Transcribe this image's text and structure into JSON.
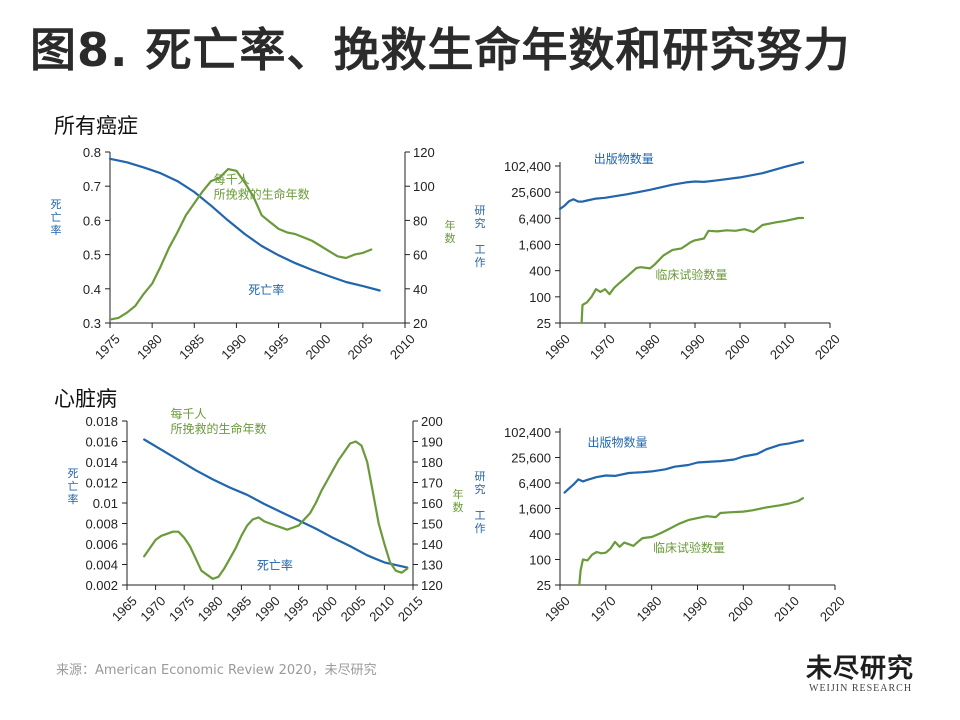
{
  "title": "图8. 死亡率、挽救生命年数和研究努力",
  "sections": {
    "cancer": "所有癌症",
    "heart": "心脏病"
  },
  "source": "来源：American Economic Review 2020，未尽研究",
  "logo": {
    "cn": "未尽研究",
    "en": "WEIJIN RESEARCH"
  },
  "colors": {
    "blue": "#2166ac",
    "green": "#6a9a3a",
    "axis": "#222222"
  },
  "chart_data": [
    {
      "id": "cancer-mortality",
      "type": "line",
      "title": "",
      "xlabel": "",
      "xlim": [
        1975,
        2010
      ],
      "xticks": [
        1975,
        1980,
        1985,
        1990,
        1995,
        2000,
        2005,
        2010
      ],
      "y_left": {
        "label": "死亡率",
        "lim": [
          0.3,
          0.8
        ],
        "ticks": [
          0.3,
          0.4,
          0.5,
          0.6,
          0.7,
          0.8
        ],
        "tick_labels": [
          "0.3",
          "0.4",
          "0.5",
          "0.6",
          "0.7",
          "0.8"
        ]
      },
      "y_right": {
        "label": "年数",
        "lim": [
          20,
          120
        ],
        "ticks": [
          20,
          40,
          60,
          80,
          100,
          120
        ],
        "tick_labels": [
          "20",
          "40",
          "60",
          "80",
          "100",
          "120"
        ]
      },
      "series": [
        {
          "name": "死亡率",
          "axis": "left",
          "color": "#2166ac",
          "x": [
            1975,
            1977,
            1979,
            1981,
            1983,
            1985,
            1987,
            1989,
            1991,
            1993,
            1995,
            1997,
            1999,
            2001,
            2003,
            2005,
            2007
          ],
          "y": [
            0.78,
            0.77,
            0.755,
            0.738,
            0.715,
            0.683,
            0.643,
            0.6,
            0.56,
            0.525,
            0.498,
            0.475,
            0.455,
            0.437,
            0.42,
            0.408,
            0.395
          ]
        },
        {
          "name": "每千人\n所挽救的生命年数",
          "axis": "right",
          "color": "#6a9a3a",
          "x": [
            1975,
            1976,
            1977,
            1978,
            1979,
            1980,
            1981,
            1982,
            1983,
            1984,
            1985,
            1986,
            1987,
            1988,
            1989,
            1990,
            1991,
            1992,
            1993,
            1994,
            1995,
            1996,
            1997,
            1998,
            1999,
            2000,
            2001,
            2002,
            2003,
            2004,
            2005,
            2006
          ],
          "y": [
            22,
            23,
            26,
            30,
            37,
            43,
            53,
            64,
            73,
            83,
            90,
            97,
            103,
            105,
            110,
            109,
            102,
            94,
            83,
            79,
            75,
            73,
            72,
            70,
            68,
            65,
            62,
            59,
            58,
            60,
            61,
            63
          ]
        }
      ],
      "annotations": [
        {
          "text": "每千人\n所挽救的生命年数",
          "x": 1987.3,
          "y": 0.708,
          "color": "#6a9a3a"
        },
        {
          "text": "死亡率",
          "x": 1991.4,
          "y": 0.385,
          "color": "#2166ac"
        }
      ]
    },
    {
      "id": "cancer-research",
      "type": "line",
      "title": "",
      "xlabel": "",
      "xlim": [
        1960,
        2020
      ],
      "xticks": [
        1960,
        1970,
        1980,
        1990,
        2000,
        2010,
        2020
      ],
      "ylabel": "研究 工作",
      "yscale": "log",
      "ylim": [
        25,
        102400
      ],
      "yticks": [
        25,
        100,
        400,
        1600,
        6400,
        25600,
        102400
      ],
      "ytick_labels": [
        "25",
        "100",
        "400",
        "1,600",
        "6,400",
        "25,600",
        "102,400"
      ],
      "series": [
        {
          "name": "出版物数量",
          "color": "#2166ac",
          "x": [
            1960,
            1961,
            1962,
            1963,
            1964,
            1965,
            1966,
            1968,
            1970,
            1975,
            1980,
            1985,
            1988,
            1990,
            1992,
            1995,
            2000,
            2005,
            2010,
            2014
          ],
          "y": [
            10500,
            12500,
            15800,
            17500,
            15600,
            15500,
            16500,
            18200,
            19000,
            23000,
            29000,
            38000,
            43000,
            45000,
            44000,
            48000,
            56000,
            70000,
            98000,
            125000
          ]
        },
        {
          "name": "临床试验数量",
          "color": "#6a9a3a",
          "x": [
            1964.8,
            1965,
            1966,
            1967,
            1968,
            1969,
            1970,
            1971,
            1972,
            1973,
            1975,
            1977,
            1978,
            1980,
            1981,
            1983,
            1985,
            1987,
            1989,
            1990,
            1992,
            1993,
            1995,
            1997,
            1999,
            2001,
            2003,
            2005,
            2008,
            2010,
            2013,
            2014
          ],
          "y": [
            25,
            65,
            75,
            100,
            150,
            130,
            150,
            115,
            160,
            200,
            300,
            460,
            480,
            450,
            550,
            900,
            1200,
            1300,
            1800,
            2000,
            2200,
            3300,
            3200,
            3400,
            3300,
            3600,
            3100,
            4500,
            5200,
            5600,
            6500,
            6500
          ]
        }
      ],
      "annotations": [
        {
          "text": "出版物数量",
          "x": 1967.5,
          "y": 120000,
          "color": "#2166ac"
        },
        {
          "text": "临床试验数量",
          "x": 1981.2,
          "y": 255,
          "color": "#6a9a3a"
        }
      ]
    },
    {
      "id": "heart-mortality",
      "type": "line",
      "title": "",
      "xlabel": "",
      "xlim": [
        1965,
        2015
      ],
      "xticks": [
        1965,
        1970,
        1975,
        1980,
        1985,
        1990,
        1995,
        2000,
        2005,
        2010,
        2015
      ],
      "y_left": {
        "label": "死亡率",
        "lim": [
          0.002,
          0.018
        ],
        "ticks": [
          0.002,
          0.004,
          0.006,
          0.008,
          0.01,
          0.012,
          0.014,
          0.016,
          0.018
        ],
        "tick_labels": [
          "0.002",
          "0.004",
          "0.006",
          "0.008",
          "0.01",
          "0.012",
          "0.014",
          "0.016",
          "0.018"
        ]
      },
      "y_right": {
        "label": "年数",
        "lim": [
          120,
          200
        ],
        "ticks": [
          120,
          130,
          140,
          150,
          160,
          170,
          180,
          190,
          200
        ],
        "tick_labels": [
          "120",
          "130",
          "140",
          "150",
          "160",
          "170",
          "180",
          "190",
          "200"
        ]
      },
      "series": [
        {
          "name": "死亡率",
          "axis": "left",
          "color": "#2166ac",
          "x": [
            1968,
            1971,
            1974,
            1977,
            1980,
            1983,
            1986,
            1989,
            1992,
            1995,
            1998,
            2001,
            2004,
            2007,
            2010,
            2014
          ],
          "y": [
            0.0162,
            0.0152,
            0.0142,
            0.0132,
            0.0123,
            0.0115,
            0.0108,
            0.0099,
            0.0091,
            0.0083,
            0.0075,
            0.0066,
            0.0058,
            0.0049,
            0.0042,
            0.0037
          ]
        },
        {
          "name": "每千人\n所挽救的生命年数",
          "axis": "right",
          "color": "#6a9a3a",
          "x": [
            1968,
            1969,
            1970,
            1971,
            1972,
            1973,
            1974,
            1975,
            1976,
            1977,
            1978,
            1979,
            1980,
            1981,
            1982,
            1983,
            1984,
            1985,
            1986,
            1987,
            1988,
            1989,
            1990,
            1991,
            1992,
            1993,
            1994,
            1995,
            1996,
            1997,
            1998,
            1999,
            2000,
            2001,
            2002,
            2003,
            2004,
            2005,
            2006,
            2007,
            2008,
            2009,
            2010,
            2011,
            2012,
            2013,
            2014
          ],
          "y": [
            134,
            138,
            142,
            144,
            145,
            146,
            146,
            143,
            139,
            133,
            127,
            125,
            123,
            124,
            128,
            133,
            138,
            144,
            149,
            152,
            153,
            151,
            150,
            149,
            148,
            147,
            148,
            149,
            152,
            155,
            160,
            166,
            171,
            176,
            181,
            185,
            189,
            190,
            188,
            180,
            165,
            150,
            140,
            131,
            127,
            126,
            128
          ]
        }
      ],
      "annotations": [
        {
          "text": "每千人\n所挽救的生命年数",
          "x": 1972.6,
          "y": 0.0183,
          "color": "#6a9a3a"
        },
        {
          "text": "死亡率",
          "x": 1987.7,
          "y": 0.0035,
          "color": "#2166ac"
        }
      ]
    },
    {
      "id": "heart-research",
      "type": "line",
      "title": "",
      "xlabel": "",
      "xlim": [
        1960,
        2020
      ],
      "xticks": [
        1960,
        1970,
        1980,
        1990,
        2000,
        2010,
        2020
      ],
      "ylabel": "研究 工作",
      "yscale": "log",
      "ylim": [
        25,
        102400
      ],
      "yticks": [
        25,
        100,
        400,
        1600,
        6400,
        25600,
        102400
      ],
      "ytick_labels": [
        "25",
        "100",
        "400",
        "1,600",
        "6,400",
        "25,600",
        "102,400"
      ],
      "series": [
        {
          "name": "出版物数量",
          "color": "#2166ac",
          "x": [
            1961,
            1962,
            1963,
            1964,
            1965,
            1966,
            1968,
            1970,
            1972,
            1975,
            1978,
            1980,
            1983,
            1985,
            1988,
            1990,
            1993,
            1995,
            1998,
            2000,
            2003,
            2005,
            2008,
            2010,
            2013
          ],
          "y": [
            3800,
            4800,
            6000,
            7800,
            7000,
            7600,
            8800,
            9600,
            9400,
            11000,
            11500,
            12000,
            13500,
            15500,
            17000,
            19500,
            20500,
            21000,
            23000,
            27000,
            31000,
            40000,
            51000,
            55000,
            65000
          ]
        },
        {
          "name": "临床试验数量",
          "color": "#6a9a3a",
          "x": [
            1964.2,
            1964.5,
            1965,
            1966,
            1967,
            1968,
            1969,
            1970,
            1971,
            1972,
            1973,
            1974,
            1975,
            1976,
            1977,
            1978,
            1980,
            1982,
            1984,
            1986,
            1988,
            1990,
            1992,
            1994,
            1995,
            1997,
            2000,
            2002,
            2005,
            2008,
            2010,
            2012,
            2013
          ],
          "y": [
            25,
            55,
            100,
            95,
            130,
            150,
            140,
            145,
            180,
            260,
            200,
            250,
            230,
            210,
            260,
            320,
            340,
            420,
            540,
            700,
            850,
            950,
            1050,
            1000,
            1250,
            1300,
            1350,
            1450,
            1700,
            1900,
            2100,
            2400,
            2800
          ]
        }
      ],
      "annotations": [
        {
          "text": "出版物数量",
          "x": 1966,
          "y": 46000,
          "color": "#2166ac"
        },
        {
          "text": "临床试验数量",
          "x": 1980.3,
          "y": 150,
          "color": "#6a9a3a"
        }
      ]
    }
  ]
}
